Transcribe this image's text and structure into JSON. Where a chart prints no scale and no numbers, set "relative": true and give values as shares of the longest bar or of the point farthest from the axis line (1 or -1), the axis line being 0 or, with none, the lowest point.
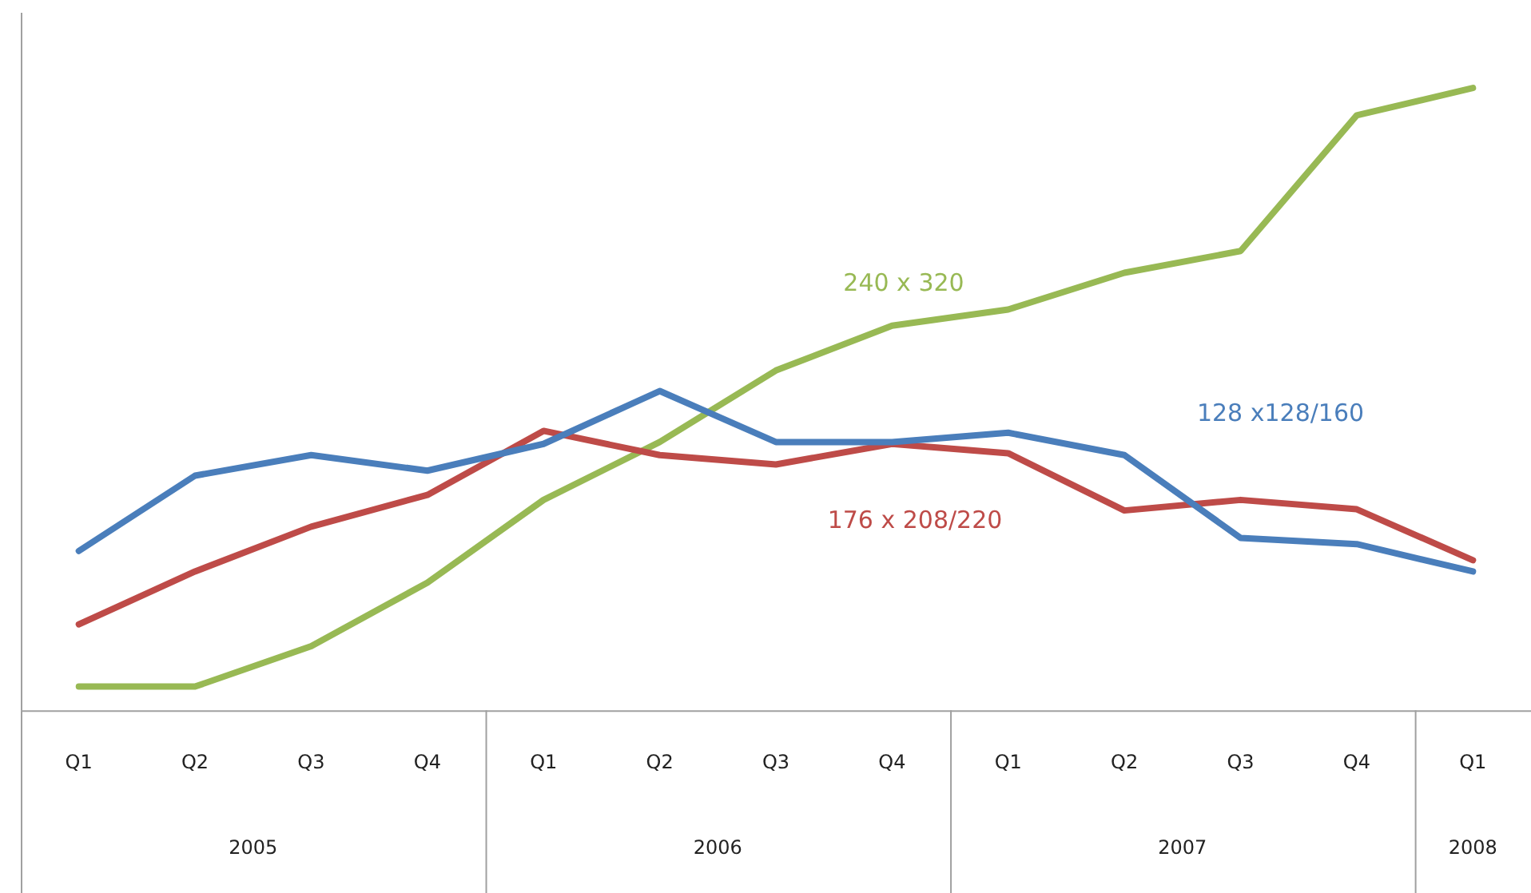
{
  "chart_data": {
    "type": "line",
    "relative": true,
    "categories": [
      "Q1",
      "Q2",
      "Q3",
      "Q4",
      "Q1",
      "Q2",
      "Q3",
      "Q4",
      "Q1",
      "Q2",
      "Q3",
      "Q4",
      "Q1"
    ],
    "annotations": [
      "2005",
      "2006",
      "2007",
      "2008"
    ],
    "series": [
      {
        "name": "128 x128/160",
        "color": "#4a7ebb",
        "values": [
          0.256,
          0.377,
          0.41,
          0.385,
          0.428,
          0.513,
          0.431,
          0.431,
          0.446,
          0.41,
          0.277,
          0.267,
          0.223
        ]
      },
      {
        "name": "176 x 208/220",
        "color": "#be4b48",
        "values": [
          0.138,
          0.223,
          0.295,
          0.346,
          0.449,
          0.41,
          0.395,
          0.428,
          0.413,
          0.321,
          0.338,
          0.323,
          0.241
        ]
      },
      {
        "name": "240 x 320",
        "color": "#98b954",
        "values": [
          0.038,
          0.038,
          0.103,
          0.205,
          0.338,
          0.431,
          0.546,
          0.618,
          0.644,
          0.703,
          0.738,
          0.956,
          1
        ]
      }
    ],
    "grid": false,
    "legend": false,
    "marker": "none",
    "line_style": "solid"
  }
}
